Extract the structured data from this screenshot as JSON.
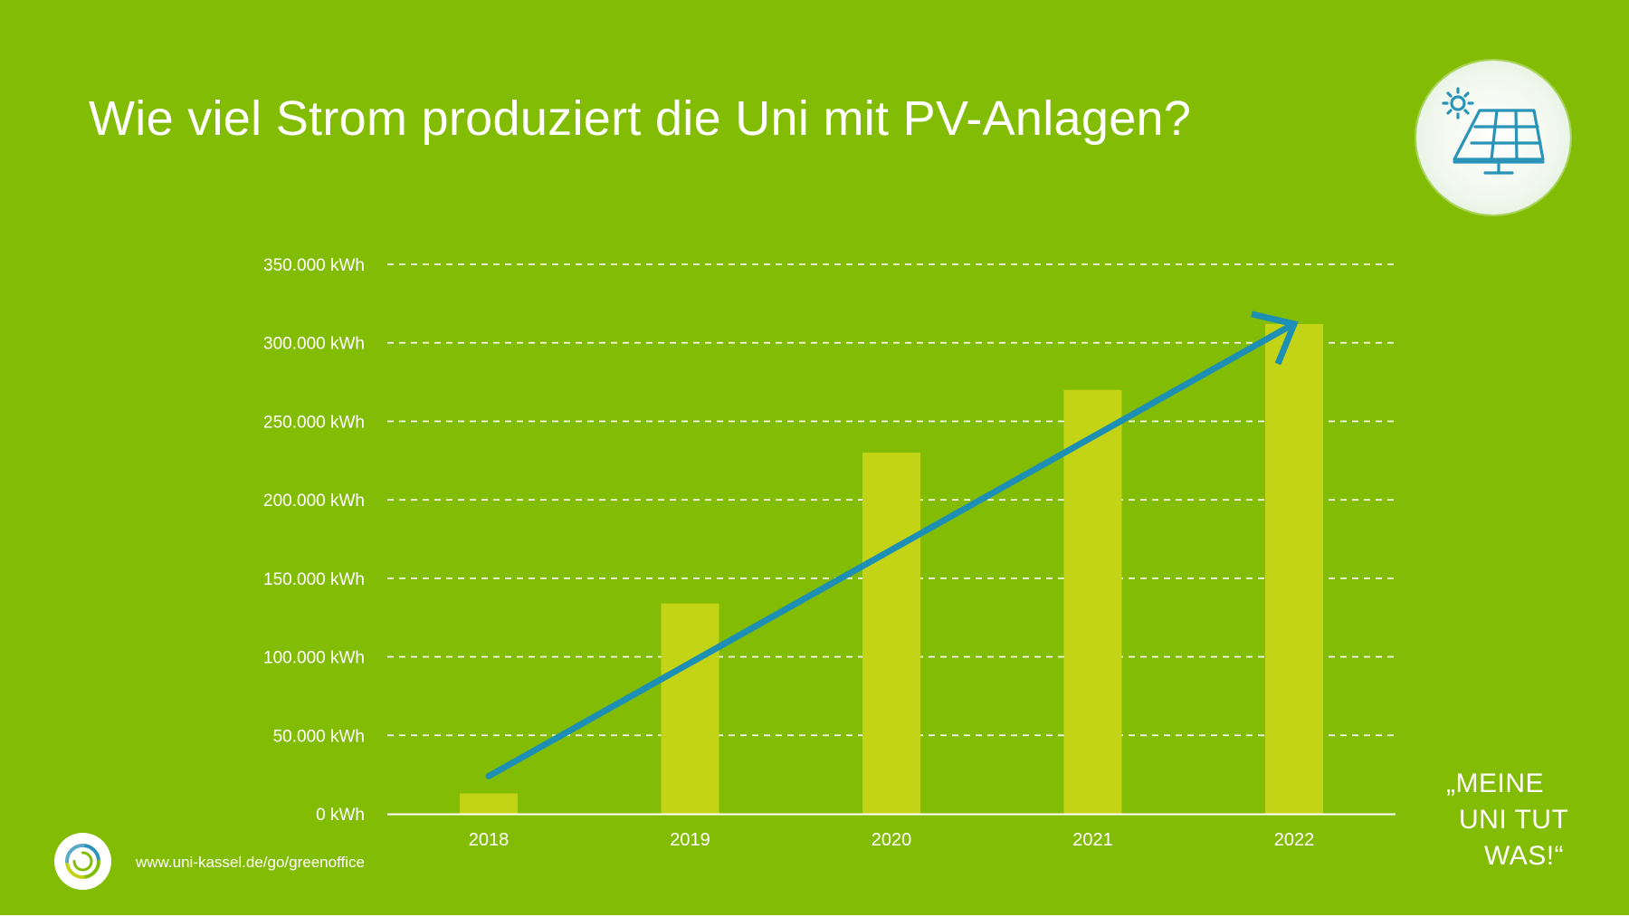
{
  "title": "Wie viel Strom produziert die Uni mit PV-Anlagen?",
  "slogan": {
    "line1": "„MEINE",
    "line2": "UNI TUT",
    "line3": "WAS!“"
  },
  "footer": {
    "url": "www.uni-kassel.de/go/greenoffice"
  },
  "icons": {
    "badge": "solar-panel-icon",
    "logo": "uni-kassel-logo-icon"
  },
  "colors": {
    "background": "#83bc04",
    "bar": "#c3d417",
    "trend_arrow": "#1d8fb5",
    "icon_stroke": "#2a93b8",
    "text": "#ffffff"
  },
  "chart_data": {
    "type": "bar",
    "title": "Wie viel Strom produziert die Uni mit PV-Anlagen?",
    "xlabel": "",
    "ylabel": "",
    "categories": [
      "2018",
      "2019",
      "2020",
      "2021",
      "2022"
    ],
    "values": [
      13000,
      134000,
      230000,
      270000,
      312000
    ],
    "ylim": [
      0,
      350000
    ],
    "yticks": [
      0,
      50000,
      100000,
      150000,
      200000,
      250000,
      300000,
      350000
    ],
    "ytick_labels": [
      "0 kWh",
      "50.000 kWh",
      "100.000 kWh",
      "150.000 kWh",
      "200.000 kWh",
      "250.000 kWh",
      "300.000 kWh",
      "350.000 kWh"
    ],
    "grid": "dashed-horizontal",
    "legend": "none",
    "trend_arrow": {
      "from": [
        "2018",
        24000
      ],
      "to": [
        "2022",
        312000
      ]
    }
  }
}
